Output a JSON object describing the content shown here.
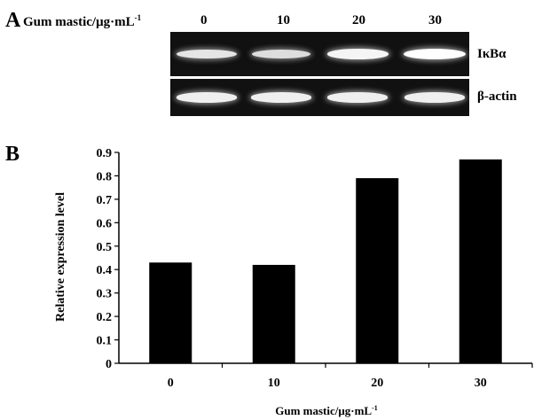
{
  "figure": {
    "panel_a_letter": "A",
    "panel_b_letter": "B",
    "concentration_label": "Gum mastic/μg·mL",
    "concentration_unit_exponent": "-1",
    "concentrations": [
      "0",
      "10",
      "20",
      "30"
    ],
    "blots": [
      {
        "label": "IκBα",
        "band_intensity": [
          0.75,
          0.68,
          0.9,
          1.0
        ]
      },
      {
        "label": "β-actin",
        "band_intensity": [
          0.85,
          0.85,
          0.85,
          0.85
        ]
      }
    ]
  },
  "chart_data": {
    "type": "bar",
    "categories": [
      "0",
      "10",
      "20",
      "30"
    ],
    "values": [
      0.43,
      0.42,
      0.79,
      0.87
    ],
    "title": "",
    "xlabel": "Gum mastic/μg·mL",
    "xlabel_exponent": "-1",
    "ylabel": "Relative expression level",
    "ylim": [
      0,
      0.9
    ],
    "yticks": [
      "0",
      "0.1",
      "0.2",
      "0.3",
      "0.4",
      "0.5",
      "0.6",
      "0.7",
      "0.8",
      "0.9"
    ],
    "grid": false,
    "bar_color": "#000000"
  }
}
